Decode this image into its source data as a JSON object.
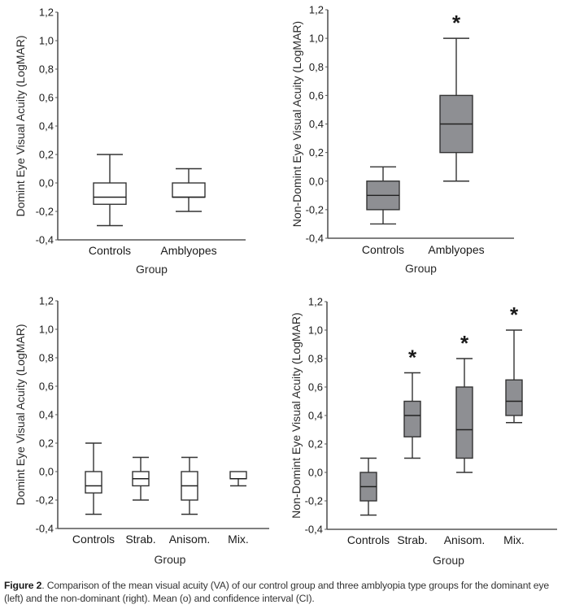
{
  "chart_data": [
    {
      "type": "boxplot",
      "panel": "top-left",
      "title": "",
      "xlabel": "Group",
      "ylabel": "Domint Eye Visual Acuity (LogMAR)",
      "ylim": [
        -0.4,
        1.2
      ],
      "yticks": [
        -0.4,
        -0.2,
        0.0,
        0.2,
        0.4,
        0.6,
        0.8,
        1.0,
        1.2
      ],
      "ytick_labels": [
        "-0,4",
        "-0,2",
        "0,0",
        "0,2",
        "0,4",
        "0,6",
        "0,8",
        "1,0",
        "1,2"
      ],
      "fill": "#ffffff",
      "categories": [
        "Controls",
        "Amblyopes"
      ],
      "boxes": [
        {
          "name": "Controls",
          "whisker_low": -0.3,
          "q1": -0.15,
          "median": -0.1,
          "q3": 0.0,
          "whisker_high": 0.2,
          "significant": false
        },
        {
          "name": "Amblyopes",
          "whisker_low": -0.2,
          "q1": -0.1,
          "median": -0.1,
          "q3": 0.0,
          "whisker_high": 0.1,
          "significant": false
        }
      ]
    },
    {
      "type": "boxplot",
      "panel": "top-right",
      "title": "",
      "xlabel": "Group",
      "ylabel": "Non-Domint Eye Visual Acuity (LogMAR)",
      "ylim": [
        -0.4,
        1.2
      ],
      "yticks": [
        -0.4,
        -0.2,
        0.0,
        0.2,
        0.4,
        0.6,
        0.8,
        1.0,
        1.2
      ],
      "ytick_labels": [
        "-0,4",
        "-0,2",
        "0,0",
        "0,2",
        "0,4",
        "0,6",
        "0,8",
        "1,0",
        "1,2"
      ],
      "fill": "#8e8f93",
      "categories": [
        "Controls",
        "Amblyopes"
      ],
      "boxes": [
        {
          "name": "Controls",
          "whisker_low": -0.3,
          "q1": -0.2,
          "median": -0.1,
          "q3": 0.0,
          "whisker_high": 0.1,
          "significant": false
        },
        {
          "name": "Amblyopes",
          "whisker_low": 0.0,
          "q1": 0.2,
          "median": 0.4,
          "q3": 0.6,
          "whisker_high": 1.0,
          "significant": true
        }
      ]
    },
    {
      "type": "boxplot",
      "panel": "bottom-left",
      "title": "",
      "xlabel": "Group",
      "ylabel": "Domint Eye Visual Acuity (LogMAR)",
      "ylim": [
        -0.4,
        1.2
      ],
      "yticks": [
        -0.4,
        -0.2,
        0.0,
        0.2,
        0.4,
        0.6,
        0.8,
        1.0,
        1.2
      ],
      "ytick_labels": [
        "-0,4",
        "-0,2",
        "0,0",
        "0,2",
        "0,4",
        "0,6",
        "0,8",
        "1,0",
        "1,2"
      ],
      "fill": "#ffffff",
      "categories": [
        "Controls",
        "Strab.",
        "Anisom.",
        "Mix."
      ],
      "boxes": [
        {
          "name": "Controls",
          "whisker_low": -0.3,
          "q1": -0.15,
          "median": -0.1,
          "q3": 0.0,
          "whisker_high": 0.2,
          "significant": false
        },
        {
          "name": "Strab.",
          "whisker_low": -0.2,
          "q1": -0.1,
          "median": -0.05,
          "q3": 0.0,
          "whisker_high": 0.1,
          "significant": false
        },
        {
          "name": "Anisom.",
          "whisker_low": -0.3,
          "q1": -0.2,
          "median": -0.1,
          "q3": 0.0,
          "whisker_high": 0.1,
          "significant": false
        },
        {
          "name": "Mix.",
          "whisker_low": -0.1,
          "q1": -0.05,
          "median": -0.05,
          "q3": 0.0,
          "whisker_high": 0.0,
          "significant": false
        }
      ]
    },
    {
      "type": "boxplot",
      "panel": "bottom-right",
      "title": "",
      "xlabel": "Group",
      "ylabel": "Non-Domint Eye Visual Acuity (LogMAR)",
      "ylim": [
        -0.4,
        1.2
      ],
      "yticks": [
        -0.4,
        -0.2,
        0.0,
        0.2,
        0.4,
        0.6,
        0.8,
        1.0,
        1.2
      ],
      "ytick_labels": [
        "-0,4",
        "-0,2",
        "0,0",
        "0,2",
        "0,4",
        "0,6",
        "0,8",
        "1,0",
        "1,2"
      ],
      "fill": "#8e8f93",
      "categories": [
        "Controls",
        "Strab.",
        "Anisom.",
        "Mix."
      ],
      "boxes": [
        {
          "name": "Controls",
          "whisker_low": -0.3,
          "q1": -0.2,
          "median": -0.1,
          "q3": 0.0,
          "whisker_high": 0.1,
          "significant": false
        },
        {
          "name": "Strab.",
          "whisker_low": 0.1,
          "q1": 0.25,
          "median": 0.4,
          "q3": 0.5,
          "whisker_high": 0.7,
          "significant": true
        },
        {
          "name": "Anisom.",
          "whisker_low": 0.0,
          "q1": 0.1,
          "median": 0.3,
          "q3": 0.6,
          "whisker_high": 0.8,
          "significant": true
        },
        {
          "name": "Mix.",
          "whisker_low": 0.35,
          "q1": 0.4,
          "median": 0.5,
          "q3": 0.65,
          "whisker_high": 1.0,
          "significant": true
        }
      ]
    }
  ],
  "significance_marker": "*",
  "caption": {
    "label": "Figure 2",
    "text": ". Comparison of the mean visual acuity (VA) of our control group and three amblyopia type groups for the dominant eye (left) and the non-dominant (right). Mean (o) and confidence interval (CI)."
  },
  "colors": {
    "axis": "#555555",
    "box_stroke": "#333333",
    "gray_fill": "#8e8f93"
  }
}
